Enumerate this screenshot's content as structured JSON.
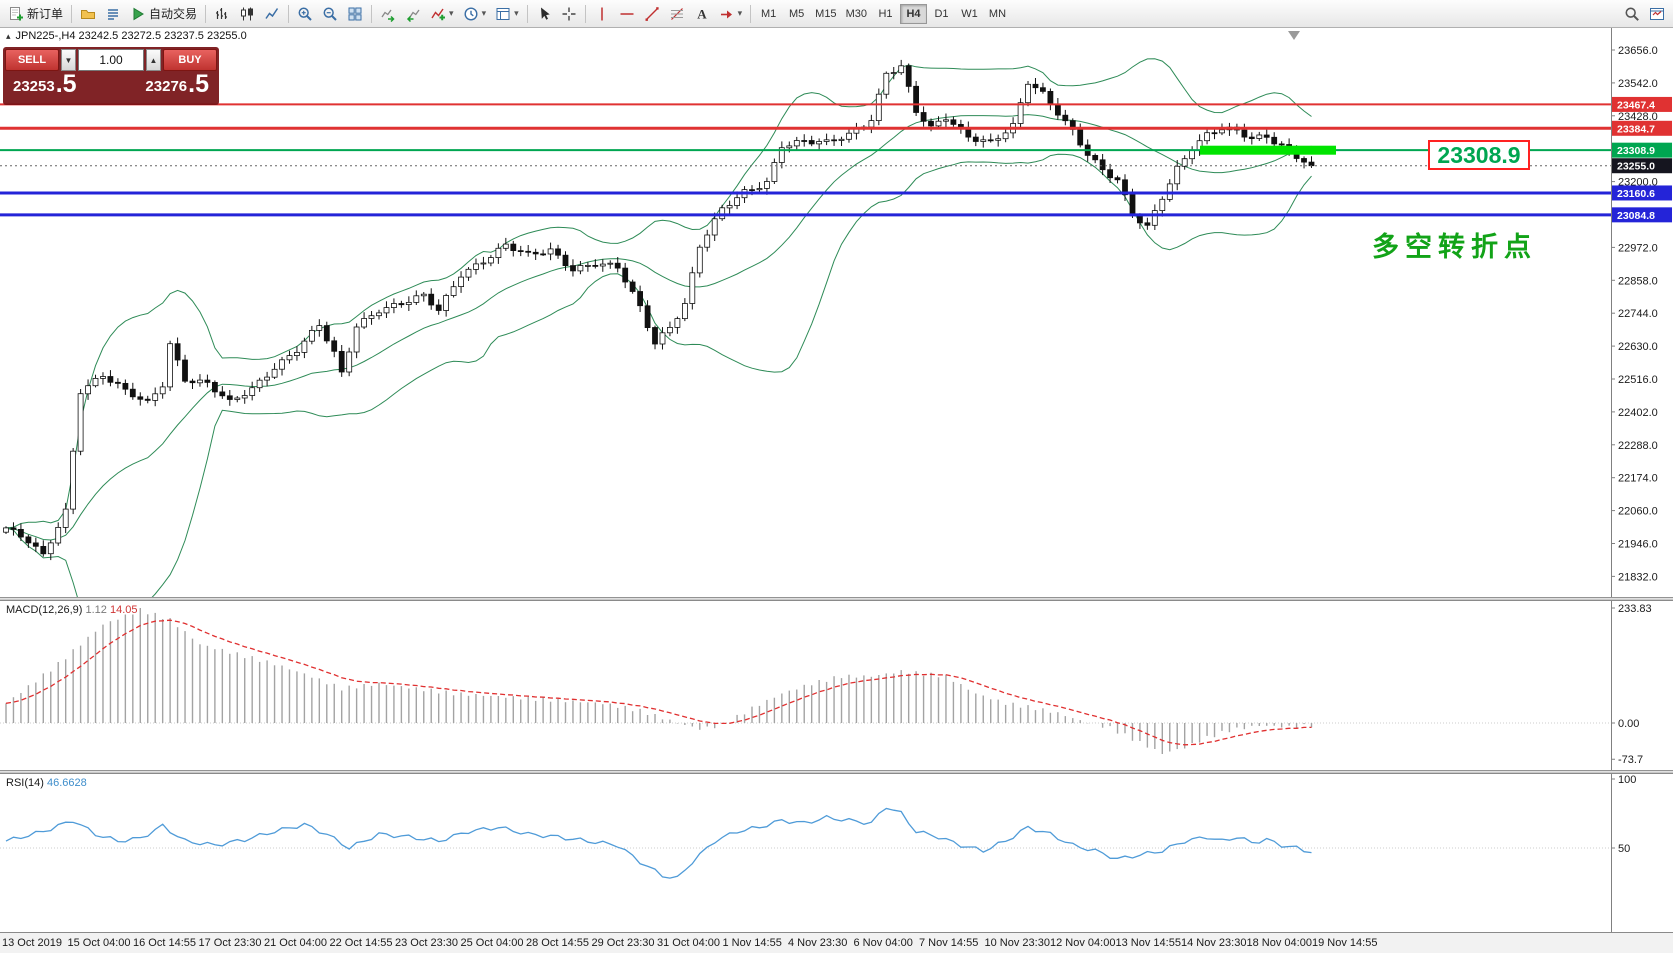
{
  "toolbar": {
    "items": [
      {
        "name": "new-order",
        "icon": "new-order",
        "label": "新订单"
      },
      {
        "name": "sep"
      },
      {
        "name": "profiles",
        "icon": "folder"
      },
      {
        "name": "market-watch",
        "icon": "list"
      },
      {
        "name": "auto-trading",
        "icon": "play",
        "label": "自动交易"
      },
      {
        "name": "sep"
      },
      {
        "name": "bar-chart",
        "icon": "bars"
      },
      {
        "name": "candlestick-chart",
        "icon": "candles"
      },
      {
        "name": "line-chart",
        "icon": "line"
      },
      {
        "name": "sep"
      },
      {
        "name": "zoom-in",
        "icon": "zoom-in"
      },
      {
        "name": "zoom-out",
        "icon": "zoom-out"
      },
      {
        "name": "tile-windows",
        "icon": "grid"
      },
      {
        "name": "sep"
      },
      {
        "name": "auto-scroll",
        "icon": "scroll"
      },
      {
        "name": "chart-shift",
        "icon": "shift"
      },
      {
        "name": "indicators",
        "icon": "indicator",
        "caret": true
      },
      {
        "name": "periods",
        "icon": "clock",
        "caret": true
      },
      {
        "name": "templates",
        "icon": "template",
        "caret": true
      },
      {
        "name": "sep"
      },
      {
        "name": "cursor",
        "icon": "cursor"
      },
      {
        "name": "crosshair",
        "icon": "crosshair"
      },
      {
        "name": "sep"
      },
      {
        "name": "vertical-line",
        "icon": "vline"
      },
      {
        "name": "horizontal-line",
        "icon": "hline"
      },
      {
        "name": "trendline",
        "icon": "tline"
      },
      {
        "name": "fibonacci",
        "icon": "fibo"
      },
      {
        "name": "text",
        "icon": "textA"
      },
      {
        "name": "arrows",
        "icon": "arrow",
        "caret": true
      },
      {
        "name": "sep"
      }
    ],
    "timeframes": [
      "M1",
      "M5",
      "M15",
      "M30",
      "H1",
      "H4",
      "D1",
      "W1",
      "MN"
    ],
    "active_timeframe": "H4",
    "items_right": [
      {
        "name": "search",
        "icon": "search"
      },
      {
        "name": "data-window",
        "icon": "window"
      }
    ]
  },
  "symbol_bar": {
    "toggle_glyph": "▴",
    "text": "JPN225-,H4 23242.5 23272.5 23237.5 23255.0"
  },
  "trade_panel": {
    "sell_label": "SELL",
    "buy_label": "BUY",
    "volume": "1.00",
    "spin_down_glyph": "▼",
    "spin_up_glyph": "▲",
    "sell_price_main": "23253",
    "sell_price_frac": ".5",
    "buy_price_main": "23276",
    "buy_price_frac": ".5"
  },
  "price_axis": {
    "ticks": [
      "23656.0",
      "23542.0",
      "23428.0",
      "23200.0",
      "22972.0",
      "22858.0",
      "22744.0",
      "22630.0",
      "22516.0",
      "22402.0",
      "22288.0",
      "22174.0",
      "22060.0",
      "21946.0",
      "21832.0"
    ],
    "badges": [
      {
        "value": "23467.4",
        "bg": "#e03232",
        "line_width": 2
      },
      {
        "value": "23384.7",
        "bg": "#e03232",
        "line_width": 3
      },
      {
        "value": "23308.9",
        "bg": "#00a651",
        "line_width": 2
      },
      {
        "value": "23255.0",
        "bg": "#15151f",
        "line_width": 0,
        "style": "dotted"
      },
      {
        "value": "23160.6",
        "bg": "#2424d8",
        "line_width": 3
      },
      {
        "value": "23084.8",
        "bg": "#2424d8",
        "line_width": 3
      }
    ]
  },
  "overlays": {
    "price_callout": "23308.9",
    "annotation": "多空转折点",
    "annotation_color": "#12a318",
    "callout_color": "#00a651",
    "highlight_level": 23308.9,
    "highlight_color": "#00e400"
  },
  "macd_panel": {
    "name": "MACD(12,26,9)",
    "value_main": "1.12",
    "value_signal": "14.05",
    "scale": [
      "233.83",
      "0.00",
      "-73.7"
    ]
  },
  "rsi_panel": {
    "name": "RSI(14)",
    "value": "46.6628",
    "scale": [
      "100",
      "50"
    ]
  },
  "time_axis": {
    "labels": [
      "13 Oct 2019",
      "15 Oct 04:00",
      "16 Oct 14:55",
      "17 Oct 23:30",
      "21 Oct 04:00",
      "22 Oct 14:55",
      "23 Oct 23:30",
      "25 Oct 04:00",
      "28 Oct 14:55",
      "29 Oct 23:30",
      "31 Oct 04:00",
      "1 Nov 14:55",
      "4 Nov 23:30",
      "6 Nov 04:00",
      "7 Nov 14:55",
      "10 Nov 23:30",
      "12 Nov 04:00",
      "13 Nov 14:55",
      "14 Nov 23:30",
      "18 Nov 04:00",
      "19 Nov 14:55"
    ]
  },
  "chart_data": {
    "type": "candlestick",
    "symbol": "JPN225-",
    "timeframe": "H4",
    "ohlc_current": {
      "open": 23242.5,
      "high": 23272.5,
      "low": 23237.5,
      "close": 23255.0
    },
    "bid": 23255.0,
    "y_range": [
      21832.0,
      23656.0
    ],
    "y_tick_step": 114,
    "candle_count": 176,
    "levels": [
      {
        "price": 23467.4,
        "color": "#e03232"
      },
      {
        "price": 23384.7,
        "color": "#e03232"
      },
      {
        "price": 23308.9,
        "color": "#00a651"
      },
      {
        "price": 23160.6,
        "color": "#2424d8"
      },
      {
        "price": 23084.8,
        "color": "#2424d8"
      }
    ],
    "close_anchors": [
      [
        0,
        22000
      ],
      [
        3,
        21950
      ],
      [
        5,
        21900
      ],
      [
        8,
        22060
      ],
      [
        10,
        22480
      ],
      [
        13,
        22530
      ],
      [
        16,
        22470
      ],
      [
        19,
        22430
      ],
      [
        21,
        22500
      ],
      [
        22,
        22640
      ],
      [
        24,
        22520
      ],
      [
        27,
        22500
      ],
      [
        30,
        22430
      ],
      [
        33,
        22480
      ],
      [
        36,
        22560
      ],
      [
        39,
        22620
      ],
      [
        42,
        22700
      ],
      [
        44,
        22600
      ],
      [
        45,
        22530
      ],
      [
        47,
        22700
      ],
      [
        50,
        22760
      ],
      [
        53,
        22780
      ],
      [
        56,
        22800
      ],
      [
        58,
        22750
      ],
      [
        61,
        22880
      ],
      [
        64,
        22930
      ],
      [
        67,
        22980
      ],
      [
        70,
        22940
      ],
      [
        73,
        22960
      ],
      [
        76,
        22900
      ],
      [
        79,
        22920
      ],
      [
        82,
        22900
      ],
      [
        85,
        22760
      ],
      [
        87,
        22640
      ],
      [
        89,
        22700
      ],
      [
        91,
        22780
      ],
      [
        93,
        22980
      ],
      [
        96,
        23100
      ],
      [
        99,
        23160
      ],
      [
        102,
        23200
      ],
      [
        104,
        23330
      ],
      [
        107,
        23340
      ],
      [
        110,
        23330
      ],
      [
        113,
        23360
      ],
      [
        116,
        23420
      ],
      [
        118,
        23580
      ],
      [
        120,
        23600
      ],
      [
        122,
        23440
      ],
      [
        124,
        23380
      ],
      [
        126,
        23420
      ],
      [
        129,
        23360
      ],
      [
        132,
        23340
      ],
      [
        135,
        23390
      ],
      [
        137,
        23540
      ],
      [
        139,
        23500
      ],
      [
        141,
        23440
      ],
      [
        143,
        23380
      ],
      [
        145,
        23300
      ],
      [
        147,
        23240
      ],
      [
        149,
        23200
      ],
      [
        151,
        23080
      ],
      [
        153,
        23040
      ],
      [
        155,
        23150
      ],
      [
        157,
        23250
      ],
      [
        159,
        23320
      ],
      [
        161,
        23360
      ],
      [
        163,
        23380
      ],
      [
        165,
        23370
      ],
      [
        167,
        23350
      ],
      [
        169,
        23360
      ],
      [
        171,
        23330
      ],
      [
        173,
        23280
      ],
      [
        175,
        23255
      ]
    ],
    "indicators": [
      {
        "type": "bollinger",
        "period": 20,
        "deviation": 2,
        "color": "#2E8B57"
      },
      {
        "type": "macd",
        "params": "12,26,9",
        "current_main": 1.12,
        "current_signal": 14.05,
        "scale_max": 233.83,
        "scale_min": -73.7,
        "hist_anchors": [
          [
            0,
            40
          ],
          [
            7,
            120
          ],
          [
            13,
            200
          ],
          [
            18,
            230
          ],
          [
            22,
            210
          ],
          [
            26,
            160
          ],
          [
            31,
            140
          ],
          [
            36,
            120
          ],
          [
            40,
            100
          ],
          [
            45,
            70
          ],
          [
            50,
            80
          ],
          [
            55,
            70
          ],
          [
            60,
            60
          ],
          [
            65,
            55
          ],
          [
            70,
            50
          ],
          [
            75,
            45
          ],
          [
            80,
            40
          ],
          [
            85,
            25
          ],
          [
            90,
            0
          ],
          [
            93,
            -12
          ],
          [
            96,
            -5
          ],
          [
            100,
            30
          ],
          [
            104,
            60
          ],
          [
            108,
            80
          ],
          [
            112,
            95
          ],
          [
            116,
            95
          ],
          [
            120,
            105
          ],
          [
            123,
            100
          ],
          [
            126,
            95
          ],
          [
            130,
            60
          ],
          [
            134,
            40
          ],
          [
            138,
            30
          ],
          [
            141,
            20
          ],
          [
            144,
            5
          ],
          [
            148,
            -10
          ],
          [
            152,
            -40
          ],
          [
            155,
            -62
          ],
          [
            158,
            -50
          ],
          [
            161,
            -30
          ],
          [
            164,
            -15
          ],
          [
            168,
            -5
          ],
          [
            172,
            -8
          ],
          [
            175,
            -5
          ]
        ]
      },
      {
        "type": "rsi",
        "period": 14,
        "current": 46.6628,
        "anchors": [
          [
            0,
            55
          ],
          [
            5,
            62
          ],
          [
            9,
            70
          ],
          [
            12,
            60
          ],
          [
            15,
            55
          ],
          [
            18,
            57
          ],
          [
            21,
            66
          ],
          [
            24,
            55
          ],
          [
            28,
            52
          ],
          [
            32,
            56
          ],
          [
            36,
            62
          ],
          [
            40,
            67
          ],
          [
            43,
            60
          ],
          [
            46,
            50
          ],
          [
            50,
            60
          ],
          [
            54,
            58
          ],
          [
            58,
            55
          ],
          [
            62,
            62
          ],
          [
            66,
            65
          ],
          [
            70,
            60
          ],
          [
            74,
            58
          ],
          [
            78,
            55
          ],
          [
            82,
            52
          ],
          [
            85,
            40
          ],
          [
            88,
            30
          ],
          [
            90,
            28
          ],
          [
            92,
            40
          ],
          [
            95,
            55
          ],
          [
            98,
            62
          ],
          [
            101,
            65
          ],
          [
            104,
            70
          ],
          [
            107,
            68
          ],
          [
            110,
            72
          ],
          [
            113,
            70
          ],
          [
            116,
            68
          ],
          [
            118,
            80
          ],
          [
            120,
            75
          ],
          [
            122,
            62
          ],
          [
            125,
            58
          ],
          [
            128,
            52
          ],
          [
            131,
            48
          ],
          [
            134,
            55
          ],
          [
            137,
            65
          ],
          [
            140,
            60
          ],
          [
            143,
            52
          ],
          [
            146,
            48
          ],
          [
            149,
            42
          ],
          [
            152,
            45
          ],
          [
            155,
            48
          ],
          [
            158,
            55
          ],
          [
            161,
            58
          ],
          [
            163,
            55
          ],
          [
            165,
            58
          ],
          [
            167,
            54
          ],
          [
            169,
            56
          ],
          [
            171,
            52
          ],
          [
            173,
            50
          ],
          [
            175,
            46.7
          ]
        ]
      }
    ]
  }
}
